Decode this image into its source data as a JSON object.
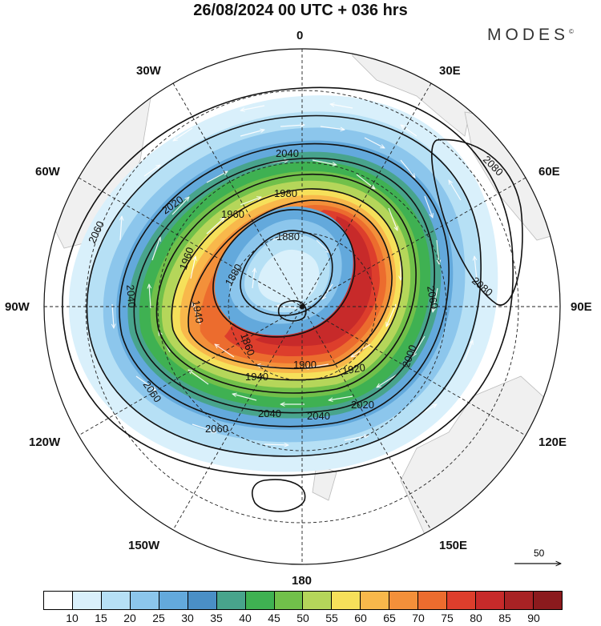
{
  "title": "26/08/2024  00 UTC  + 036 hrs",
  "brand": "MODES",
  "brand_mark": "©",
  "map": {
    "projection": "south-polar-stereographic",
    "longitude_labels": [
      "0",
      "30E",
      "60E",
      "90E",
      "120E",
      "150E",
      "180",
      "150W",
      "120W",
      "90W",
      "60W",
      "30W"
    ],
    "height_contour_labels": [
      "2040",
      "1980",
      "1960",
      "1880",
      "2020",
      "1960",
      "1880",
      "1860",
      "1940",
      "1900",
      "1920",
      "2000",
      "1940",
      "2040",
      "2040",
      "2020",
      "2060",
      "2060",
      "2060",
      "2040",
      "2080",
      "2080",
      "2060"
    ],
    "contour_levels": [
      1860,
      1880,
      1900,
      1920,
      1940,
      1960,
      1980,
      2000,
      2020,
      2040,
      2060,
      2080
    ],
    "wind_vector_reference": "50",
    "land_color": "#f0f0f0"
  },
  "colorbar": {
    "ticks": [
      "10",
      "15",
      "20",
      "25",
      "30",
      "35",
      "40",
      "45",
      "50",
      "55",
      "60",
      "65",
      "70",
      "75",
      "80",
      "85",
      "90"
    ],
    "colors": [
      "#ffffff",
      "#d9f0fb",
      "#b6e0f5",
      "#8cc6ec",
      "#63a9dc",
      "#4a8fc6",
      "#48a48c",
      "#3fb152",
      "#71c04a",
      "#b5d65a",
      "#f6e05a",
      "#f8b84b",
      "#f3903a",
      "#ec6c2e",
      "#dd3e2c",
      "#c72a2a",
      "#a82224",
      "#8b1a1d"
    ]
  }
}
